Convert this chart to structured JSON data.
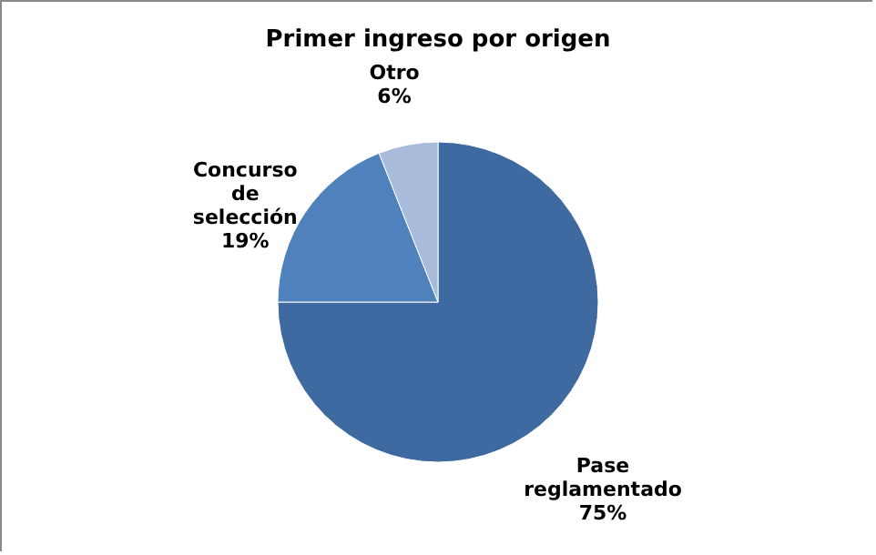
{
  "chart_data": {
    "type": "pie",
    "title": "Primer ingreso por origen",
    "categories": [
      "Pase reglamentado",
      "Concurso de selección",
      "Otro"
    ],
    "values": [
      75,
      19,
      6
    ],
    "value_labels": [
      "75%",
      "19%",
      "6%"
    ],
    "colors": [
      "#3e6aa1",
      "#4f81bd",
      "#a9bbdb"
    ],
    "legend": false
  }
}
